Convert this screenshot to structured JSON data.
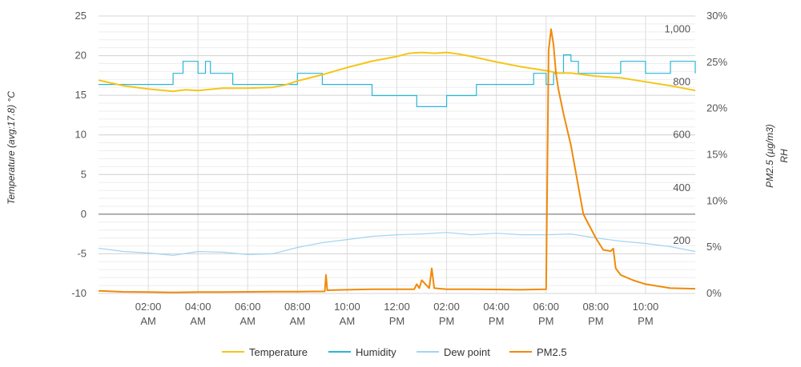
{
  "chart_data": {
    "type": "line",
    "title": "",
    "axes": {
      "left": {
        "title": "Temperature (avg:17.8) °C",
        "min": -10,
        "max": 25,
        "ticks": [
          25,
          20,
          15,
          10,
          5,
          0,
          -5,
          -10
        ],
        "tick_labels": [
          "25",
          "20",
          "15",
          "10",
          "5",
          "0",
          "-5",
          "-10"
        ]
      },
      "pm": {
        "min": 0,
        "max": 1050,
        "ticks": [
          1000,
          800,
          600,
          400,
          200
        ],
        "tick_labels": [
          "1,000",
          "800",
          "600",
          "400",
          "200"
        ]
      },
      "right": {
        "title_line1": "PM2.5 (µg/m3)",
        "title_line2": "RH",
        "min": 0,
        "max": 30,
        "ticks": [
          30,
          25,
          20,
          15,
          10,
          5,
          0
        ],
        "tick_labels": [
          "30%",
          "25%",
          "20%",
          "15%",
          "10%",
          "5%",
          "0%"
        ]
      },
      "x": {
        "min_hour": 0,
        "max_hour": 24,
        "ticks": [
          2,
          4,
          6,
          8,
          10,
          12,
          14,
          16,
          18,
          20,
          22
        ],
        "tick_labels": [
          [
            "02:00",
            "AM"
          ],
          [
            "04:00",
            "AM"
          ],
          [
            "06:00",
            "AM"
          ],
          [
            "08:00",
            "AM"
          ],
          [
            "10:00",
            "AM"
          ],
          [
            "12:00",
            "PM"
          ],
          [
            "02:00",
            "PM"
          ],
          [
            "04:00",
            "PM"
          ],
          [
            "06:00",
            "PM"
          ],
          [
            "08:00",
            "PM"
          ],
          [
            "10:00",
            "PM"
          ]
        ]
      }
    },
    "grid": true,
    "legend_position": "bottom-center",
    "series": [
      {
        "name": "Temperature",
        "color": "#f5c518",
        "axis": "left",
        "x": [
          0,
          1,
          2,
          3,
          3.5,
          4,
          5,
          6,
          7,
          7.5,
          8,
          9,
          10,
          11,
          12,
          12.5,
          13,
          13.5,
          14,
          14.5,
          15,
          16,
          17,
          18,
          18.5,
          19,
          20,
          21,
          22,
          23,
          24
        ],
        "y": [
          16.9,
          16.2,
          15.8,
          15.5,
          15.7,
          15.6,
          15.9,
          15.9,
          16.0,
          16.3,
          16.8,
          17.6,
          18.5,
          19.3,
          19.9,
          20.3,
          20.4,
          20.3,
          20.4,
          20.2,
          19.9,
          19.2,
          18.6,
          18.1,
          17.8,
          17.8,
          17.4,
          17.2,
          16.7,
          16.2,
          15.6
        ]
      },
      {
        "name": "Humidity",
        "color": "#29b6d8",
        "axis": "right",
        "x": [
          0,
          2.9,
          3.0,
          3.3,
          3.4,
          3.8,
          4.0,
          4.3,
          4.5,
          5.3,
          5.4,
          7.7,
          8.0,
          8.7,
          9.0,
          9.8,
          10.7,
          11.0,
          12.0,
          12.8,
          13.0,
          13.8,
          14.0,
          14.9,
          15.2,
          17.3,
          17.5,
          18.0,
          18.3,
          18.7,
          19.0,
          19.3,
          20.0,
          21.0,
          22.0,
          22.5,
          23.0,
          24
        ],
        "y": [
          22.6,
          22.6,
          23.8,
          23.8,
          25.1,
          25.1,
          23.8,
          25.1,
          23.8,
          23.8,
          22.6,
          22.6,
          23.8,
          23.8,
          22.6,
          22.6,
          22.6,
          21.4,
          21.4,
          20.2,
          20.2,
          20.2,
          21.4,
          21.4,
          22.6,
          22.6,
          23.8,
          22.6,
          23.8,
          25.8,
          25.1,
          23.8,
          23.8,
          25.1,
          23.8,
          23.8,
          25.1,
          23.8
        ]
      },
      {
        "name": "Dew point",
        "color": "#a3d4f2",
        "axis": "left",
        "x": [
          0,
          1,
          2,
          3,
          4,
          5,
          6,
          7,
          8,
          9,
          10,
          11,
          12,
          13,
          14,
          15,
          16,
          17,
          18,
          19,
          20,
          21,
          22,
          23,
          24
        ],
        "y": [
          -4.3,
          -4.7,
          -4.9,
          -5.2,
          -4.7,
          -4.8,
          -5.1,
          -5.0,
          -4.2,
          -3.6,
          -3.2,
          -2.8,
          -2.6,
          -2.5,
          -2.3,
          -2.6,
          -2.4,
          -2.6,
          -2.6,
          -2.5,
          -3.0,
          -3.4,
          -3.7,
          -4.1,
          -4.7
        ]
      },
      {
        "name": "PM2.5",
        "color": "#f08a0a",
        "axis": "pm",
        "x": [
          0,
          1,
          2,
          3,
          4,
          5,
          6,
          7,
          8,
          9.1,
          9.15,
          9.2,
          10,
          11,
          12,
          12.7,
          12.8,
          12.9,
          13.0,
          13.3,
          13.4,
          13.5,
          14,
          15,
          16,
          17,
          18.0,
          18.1,
          18.2,
          18.3,
          18.4,
          18.5,
          18.7,
          19.0,
          19.5,
          20.0,
          20.3,
          20.6,
          20.7,
          20.8,
          21.0,
          21.5,
          22,
          23,
          24
        ],
        "y": [
          10,
          6,
          5,
          4,
          5,
          5,
          6,
          7,
          7,
          8,
          70,
          12,
          14,
          16,
          16,
          16,
          35,
          20,
          50,
          20,
          95,
          20,
          16,
          16,
          15,
          14,
          16,
          920,
          1000,
          940,
          830,
          770,
          680,
          560,
          300,
          210,
          165,
          160,
          170,
          95,
          70,
          50,
          35,
          20,
          18
        ]
      }
    ]
  }
}
